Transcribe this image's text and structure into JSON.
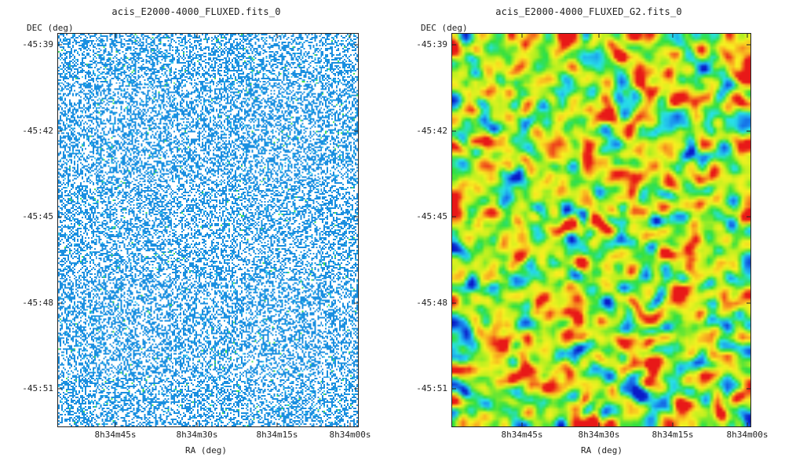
{
  "chart_data": [
    {
      "type": "heatmap",
      "title": "acis_E2000-4000_FLUXED.fits_0",
      "ylabel": "DEC (deg)",
      "xlabel": "RA (deg)",
      "y_ticks": [
        "-45:39",
        "-45:42",
        "-45:45",
        "-45:48",
        "-45:51"
      ],
      "x_ticks": [
        "8h34m45s",
        "8h34m30s",
        "8h34m15s",
        "8h34m00s"
      ],
      "colormap": [
        "#ffffff",
        "#1a8fe0",
        "#38c8f0",
        "#40e060"
      ],
      "style": "sparse-binned"
    },
    {
      "type": "heatmap",
      "title": "acis_E2000-4000_FLUXED_G2.fits_0",
      "ylabel": "DEC (deg)",
      "xlabel": "RA (deg)",
      "y_ticks": [
        "-45:39",
        "-45:42",
        "-45:45",
        "-45:48",
        "-45:51"
      ],
      "x_ticks": [
        "8h34m45s",
        "8h34m30s",
        "8h34m15s",
        "8h34m00s"
      ],
      "colormap": [
        "#0a1ac8",
        "#1a8cf0",
        "#28e0e8",
        "#30e040",
        "#b8f020",
        "#f8f020",
        "#f8a020",
        "#e81818"
      ],
      "style": "smoothed"
    }
  ]
}
